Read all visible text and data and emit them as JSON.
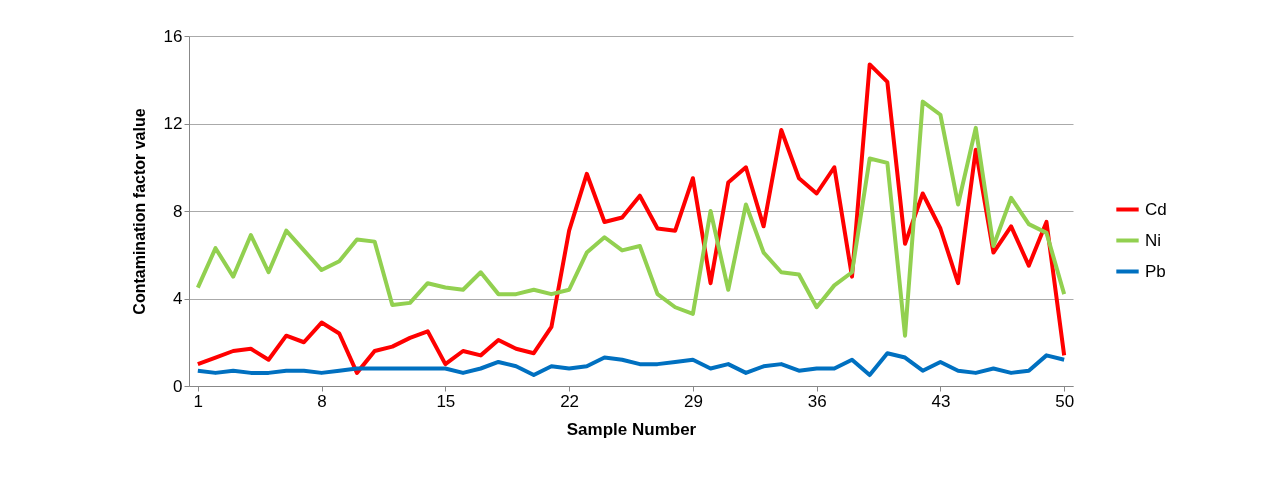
{
  "chart_data": {
    "type": "line",
    "xlabel": "Sample Number",
    "ylabel": "Contamination factor value",
    "x": [
      1,
      2,
      3,
      4,
      5,
      6,
      7,
      8,
      9,
      10,
      11,
      12,
      13,
      14,
      15,
      16,
      17,
      18,
      19,
      20,
      21,
      22,
      23,
      24,
      25,
      26,
      27,
      28,
      29,
      30,
      31,
      32,
      33,
      34,
      35,
      36,
      37,
      38,
      39,
      40,
      41,
      42,
      43,
      44,
      45,
      46,
      47,
      48,
      49,
      50
    ],
    "series": [
      {
        "name": "Cd",
        "color": "#ff0000",
        "values": [
          1.0,
          1.3,
          1.6,
          1.7,
          1.2,
          2.3,
          2.0,
          2.9,
          2.4,
          0.6,
          1.6,
          1.8,
          2.2,
          2.5,
          1.0,
          1.6,
          1.4,
          2.1,
          1.7,
          1.5,
          2.7,
          7.1,
          9.7,
          7.5,
          7.7,
          8.7,
          7.2,
          7.1,
          9.5,
          4.7,
          9.3,
          10.0,
          7.3,
          11.7,
          9.5,
          8.8,
          10.0,
          5.0,
          14.7,
          13.9,
          6.5,
          8.8,
          7.2,
          4.7,
          10.8,
          6.1,
          7.3,
          5.5,
          7.5,
          1.4
        ]
      },
      {
        "name": "Ni",
        "color": "#92d050",
        "values": [
          4.5,
          6.3,
          5.0,
          6.9,
          5.2,
          7.1,
          6.2,
          5.3,
          5.7,
          6.7,
          6.6,
          3.7,
          3.8,
          4.7,
          4.5,
          4.4,
          5.2,
          4.2,
          4.2,
          4.4,
          4.2,
          4.4,
          6.1,
          6.8,
          6.2,
          6.4,
          4.2,
          3.6,
          3.3,
          8.0,
          4.4,
          8.3,
          6.1,
          5.2,
          5.1,
          3.6,
          4.6,
          5.2,
          10.4,
          10.2,
          2.3,
          13.0,
          12.4,
          8.3,
          11.8,
          6.4,
          8.6,
          7.4,
          7.0,
          4.2
        ]
      },
      {
        "name": "Pb",
        "color": "#0070c0",
        "values": [
          0.7,
          0.6,
          0.7,
          0.6,
          0.6,
          0.7,
          0.7,
          0.6,
          0.7,
          0.8,
          0.8,
          0.8,
          0.8,
          0.8,
          0.8,
          0.6,
          0.8,
          1.1,
          0.9,
          0.5,
          0.9,
          0.8,
          0.9,
          1.3,
          1.2,
          1.0,
          1.0,
          1.1,
          1.2,
          0.8,
          1.0,
          0.6,
          0.9,
          1.0,
          0.7,
          0.8,
          0.8,
          1.2,
          0.5,
          1.5,
          1.3,
          0.7,
          1.1,
          0.7,
          0.6,
          0.8,
          0.6,
          0.7,
          1.4,
          1.2
        ]
      }
    ],
    "xlim": [
      0.5,
      50.5
    ],
    "xticks": [
      1,
      8,
      15,
      22,
      29,
      36,
      43,
      50
    ],
    "ylim": [
      0,
      16
    ],
    "yticks": [
      0,
      4,
      8,
      12,
      16
    ],
    "grid": "y",
    "legend": "right",
    "marker": "none",
    "line_style": "solid"
  }
}
